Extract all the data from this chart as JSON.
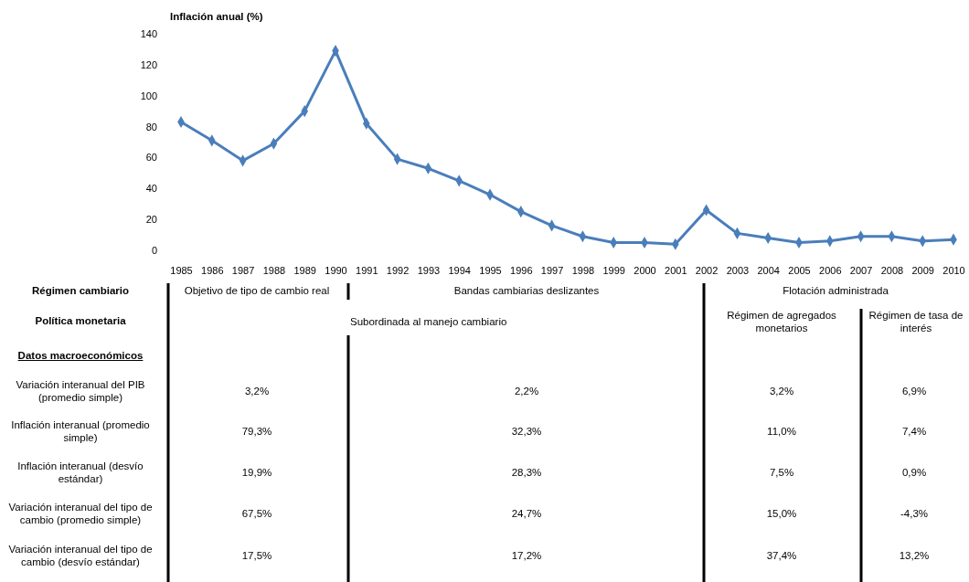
{
  "chart_data": {
    "type": "line",
    "ylabel": "Inflación anual (%)",
    "categories": [
      "1985",
      "1986",
      "1987",
      "1988",
      "1989",
      "1990",
      "1991",
      "1992",
      "1993",
      "1994",
      "1995",
      "1996",
      "1997",
      "1998",
      "1999",
      "2000",
      "2001",
      "2002",
      "2003",
      "2004",
      "2005",
      "2006",
      "2007",
      "2008",
      "2009",
      "2010"
    ],
    "series": [
      {
        "color": "#4a7ebb",
        "values": [
          83,
          71,
          58,
          69,
          90,
          129,
          82,
          59,
          53,
          45,
          36,
          25,
          16,
          9,
          5,
          5,
          4,
          26,
          11,
          8,
          5,
          6,
          9,
          9,
          6,
          7
        ]
      }
    ],
    "ylim": [
      0,
      140
    ],
    "yticks": [
      0,
      20,
      40,
      60,
      80,
      100,
      120,
      140
    ],
    "marker": "diamond",
    "line_style": "solid",
    "grid": false,
    "annotations": [
      "Régimen cambiario",
      "Objetivo de tipo de cambio real",
      "Bandas cambiarias deslizantes",
      "Flotación administrada",
      "Política monetaria",
      "Subordinada al manejo cambiario",
      "Régimen de agregados monetarios",
      "Régimen de tasa de interés",
      "Datos macroeconómicos",
      "Variación interanual del PIB (promedio simple)",
      "3,2%",
      "2,2%",
      "3,2%",
      "6,9%",
      "Inflación interanual (promedio simple)",
      "79,3%",
      "32,3%",
      "11,0%",
      "7,4%",
      "Inflación interanual (desvío estándar)",
      "19,9%",
      "28,3%",
      "7,5%",
      "0,9%",
      "Variación interanual del tipo de cambio (promedio simple)",
      "67,5%",
      "24,7%",
      "15,0%",
      "-4,3%",
      "Variación interanual del tipo de cambio (desvío estándar)",
      "17,5%",
      "17,2%",
      "37,4%",
      "13,2%"
    ]
  }
}
